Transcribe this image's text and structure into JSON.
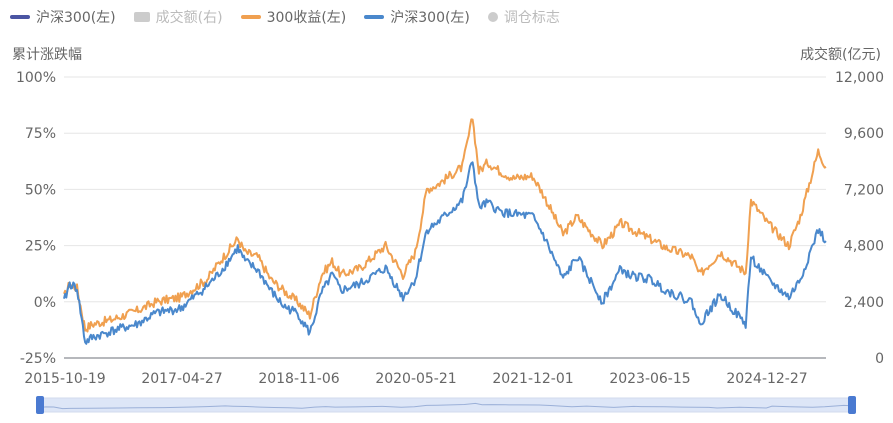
{
  "legend": [
    {
      "label": "沪深300(左)",
      "color": "#4b55a3",
      "style": "line",
      "active": true
    },
    {
      "label": "成交额(右)",
      "color": "#cccccc",
      "style": "bar",
      "active": false
    },
    {
      "label": "300收益(左)",
      "color": "#f0a050",
      "style": "line",
      "active": true
    },
    {
      "label": "沪深300(左)",
      "color": "#4a88cc",
      "style": "line",
      "active": true
    },
    {
      "label": "调仓标志",
      "color": "#cccccc",
      "style": "dot",
      "active": false
    }
  ],
  "axes": {
    "left_title": "累计涨跌幅",
    "right_title": "成交额(亿元)",
    "left_ticks": [
      "100%",
      "75%",
      "50%",
      "25%",
      "0%",
      "-25%"
    ],
    "right_ticks": [
      "12,000",
      "9,600",
      "7,200",
      "4,800",
      "2,400",
      "0"
    ],
    "x_ticks": [
      "2015-10-19",
      "2017-04-27",
      "2018-11-06",
      "2020-05-21",
      "2021-12-01",
      "2023-06-15",
      "2024-12-27"
    ]
  },
  "chart_data": {
    "type": "line",
    "title": "",
    "xlabel": "",
    "ylabel": "累计涨跌幅",
    "y2label": "成交额(亿元)",
    "ylim": [
      -25,
      100
    ],
    "y2lim": [
      0,
      12000
    ],
    "x_range": [
      "2015-10-19",
      "2025-10-01"
    ],
    "series": [
      {
        "name": "300收益(左)",
        "color": "#f0a050",
        "points": [
          [
            "2015-10-19",
            2
          ],
          [
            "2015-11-15",
            8
          ],
          [
            "2015-12-20",
            6
          ],
          [
            "2016-01-28",
            -12
          ],
          [
            "2016-03-01",
            -10
          ],
          [
            "2016-06-01",
            -8
          ],
          [
            "2016-10-01",
            -4
          ],
          [
            "2017-01-01",
            0
          ],
          [
            "2017-04-27",
            2
          ],
          [
            "2017-09-01",
            10
          ],
          [
            "2017-11-01",
            18
          ],
          [
            "2018-01-25",
            28
          ],
          [
            "2018-03-01",
            22
          ],
          [
            "2018-05-01",
            20
          ],
          [
            "2018-07-01",
            10
          ],
          [
            "2018-09-01",
            5
          ],
          [
            "2018-11-06",
            0
          ],
          [
            "2019-01-04",
            -6
          ],
          [
            "2019-03-01",
            12
          ],
          [
            "2019-04-20",
            18
          ],
          [
            "2019-06-01",
            12
          ],
          [
            "2019-09-01",
            15
          ],
          [
            "2019-12-31",
            25
          ],
          [
            "2020-03-23",
            12
          ],
          [
            "2020-05-21",
            22
          ],
          [
            "2020-07-15",
            50
          ],
          [
            "2020-09-01",
            52
          ],
          [
            "2020-12-31",
            60
          ],
          [
            "2021-02-18",
            82
          ],
          [
            "2021-03-20",
            58
          ],
          [
            "2021-05-01",
            62
          ],
          [
            "2021-07-01",
            58
          ],
          [
            "2021-09-01",
            55
          ],
          [
            "2021-12-01",
            56
          ],
          [
            "2022-01-20",
            48
          ],
          [
            "2022-04-26",
            30
          ],
          [
            "2022-07-01",
            38
          ],
          [
            "2022-10-31",
            25
          ],
          [
            "2023-01-28",
            35
          ],
          [
            "2023-03-01",
            33
          ],
          [
            "2023-06-15",
            28
          ],
          [
            "2023-09-01",
            24
          ],
          [
            "2023-12-31",
            20
          ],
          [
            "2024-02-05",
            12
          ],
          [
            "2024-05-15",
            22
          ],
          [
            "2024-09-13",
            13
          ],
          [
            "2024-10-08",
            45
          ],
          [
            "2024-12-27",
            35
          ],
          [
            "2025-04-07",
            25
          ],
          [
            "2025-06-01",
            38
          ],
          [
            "2025-08-25",
            67
          ],
          [
            "2025-10-01",
            60
          ]
        ]
      },
      {
        "name": "沪深300(左)",
        "color": "#4a88cc",
        "points": [
          [
            "2015-10-19",
            0
          ],
          [
            "2015-11-15",
            8
          ],
          [
            "2015-12-20",
            6
          ],
          [
            "2016-01-28",
            -18
          ],
          [
            "2016-03-01",
            -16
          ],
          [
            "2016-06-01",
            -13
          ],
          [
            "2016-10-01",
            -10
          ],
          [
            "2017-01-01",
            -5
          ],
          [
            "2017-04-27",
            -3
          ],
          [
            "2017-09-01",
            7
          ],
          [
            "2017-11-01",
            13
          ],
          [
            "2018-01-25",
            24
          ],
          [
            "2018-03-01",
            18
          ],
          [
            "2018-05-01",
            14
          ],
          [
            "2018-07-01",
            5
          ],
          [
            "2018-09-01",
            -2
          ],
          [
            "2018-11-06",
            -5
          ],
          [
            "2019-01-04",
            -14
          ],
          [
            "2019-03-01",
            4
          ],
          [
            "2019-04-20",
            12
          ],
          [
            "2019-06-01",
            5
          ],
          [
            "2019-09-01",
            8
          ],
          [
            "2019-12-31",
            15
          ],
          [
            "2020-03-23",
            2
          ],
          [
            "2020-05-21",
            10
          ],
          [
            "2020-07-15",
            32
          ],
          [
            "2020-09-01",
            35
          ],
          [
            "2020-12-31",
            45
          ],
          [
            "2021-02-18",
            63
          ],
          [
            "2021-03-20",
            42
          ],
          [
            "2021-05-01",
            44
          ],
          [
            "2021-07-01",
            40
          ],
          [
            "2021-09-01",
            39
          ],
          [
            "2021-12-01",
            38
          ],
          [
            "2022-01-20",
            30
          ],
          [
            "2022-04-26",
            10
          ],
          [
            "2022-07-01",
            20
          ],
          [
            "2022-10-31",
            0
          ],
          [
            "2023-01-28",
            15
          ],
          [
            "2023-03-01",
            12
          ],
          [
            "2023-06-15",
            10
          ],
          [
            "2023-09-01",
            5
          ],
          [
            "2023-12-31",
            0
          ],
          [
            "2024-02-05",
            -10
          ],
          [
            "2024-05-15",
            3
          ],
          [
            "2024-09-13",
            -10
          ],
          [
            "2024-10-08",
            20
          ],
          [
            "2024-12-27",
            10
          ],
          [
            "2025-04-07",
            2
          ],
          [
            "2025-06-01",
            10
          ],
          [
            "2025-08-25",
            32
          ],
          [
            "2025-10-01",
            27
          ]
        ]
      }
    ]
  }
}
